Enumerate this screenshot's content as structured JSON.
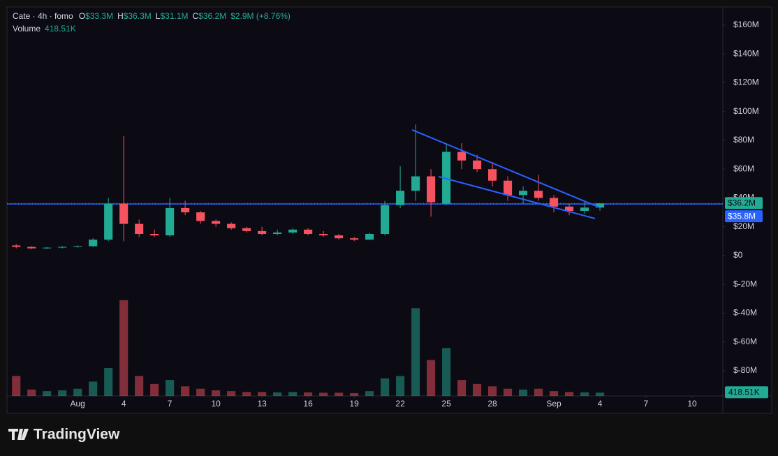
{
  "chart_data": {
    "type": "candlestick",
    "title": "Cate · 4h · fomo",
    "ohlc_names": [
      "O",
      "H",
      "L",
      "C"
    ],
    "ohlc_labels": [
      "$33.3M",
      "$36.3M",
      "$31.1M",
      "$36.2M"
    ],
    "change": "$2.9M (+8.76%)",
    "volume_name": "Volume",
    "volume_label": "418.51K",
    "up_color": "#22ab94",
    "down_color": "#f7525f",
    "x": [
      -3,
      -2,
      -1,
      0,
      1,
      2,
      3,
      4,
      5,
      6,
      7,
      8,
      9,
      10,
      11,
      12,
      13,
      14,
      15,
      16,
      17,
      18,
      19,
      20,
      21,
      22,
      23,
      24,
      25,
      26,
      27,
      28,
      29,
      30,
      31,
      32,
      33,
      34,
      35
    ],
    "open": [
      7,
      6,
      5,
      5.5,
      6,
      6.5,
      11,
      36,
      22,
      15,
      14,
      33,
      30,
      24,
      22,
      19,
      17,
      15,
      16,
      18,
      15,
      14,
      12,
      11,
      15,
      35,
      45,
      55,
      36,
      72,
      66,
      60,
      52,
      42,
      45,
      40,
      34,
      31,
      33.3
    ],
    "high": [
      8,
      6.5,
      6,
      6.5,
      7,
      12,
      40,
      83,
      25,
      18,
      40,
      38,
      31,
      25,
      23,
      20,
      20,
      18,
      19,
      19,
      17,
      15,
      13,
      16,
      38,
      62,
      91,
      60,
      78,
      78,
      70,
      65,
      55,
      48,
      56,
      42,
      36,
      37,
      36.3
    ],
    "low": [
      5,
      4.5,
      4.5,
      5,
      5.5,
      6,
      10,
      10,
      13,
      13,
      13,
      28,
      22,
      20,
      18,
      16,
      14,
      14,
      15,
      14,
      13,
      11,
      10,
      11,
      14,
      33,
      38,
      27,
      35,
      60,
      58,
      48,
      38,
      36,
      38,
      30,
      28,
      29,
      31.1
    ],
    "close": [
      6,
      5,
      5.5,
      6,
      6.5,
      11,
      36,
      22,
      15,
      14,
      33,
      30,
      24,
      22,
      19,
      17,
      15,
      16,
      18,
      15,
      14,
      12,
      11,
      15,
      35,
      45,
      55,
      37,
      72,
      66,
      60,
      52,
      42,
      45,
      40,
      34,
      31,
      33.3,
      36.2
    ],
    "volume": [
      2500,
      800,
      600,
      700,
      900,
      1800,
      3500,
      12000,
      2500,
      1500,
      2000,
      1200,
      900,
      700,
      600,
      500,
      500,
      450,
      500,
      450,
      400,
      400,
      350,
      600,
      2200,
      2500,
      11000,
      4500,
      6000,
      2000,
      1500,
      1200,
      900,
      800,
      900,
      600,
      500,
      450,
      418.51
    ],
    "volume_value_labels_last": "418.51K",
    "xlim": [
      -3.6,
      43
    ],
    "xticks": [
      {
        "value": 1,
        "label": "Aug"
      },
      4,
      7,
      10,
      13,
      16,
      19,
      22,
      25,
      28,
      {
        "value": 32,
        "label": "Sep"
      },
      {
        "value": 35,
        "label": "4"
      },
      {
        "value": 38,
        "label": "7"
      },
      {
        "value": 41,
        "label": "10"
      }
    ],
    "ylim": [
      -97.5,
      172.6
    ],
    "yticks": [
      {
        "value": 160,
        "label": "$160M"
      },
      {
        "value": 140,
        "label": "$140M"
      },
      {
        "value": 120,
        "label": "$120M"
      },
      {
        "value": 100,
        "label": "$100M"
      },
      {
        "value": 80,
        "label": "$80M"
      },
      {
        "value": 60,
        "label": "$60M"
      },
      {
        "value": 40,
        "label": "$40M"
      },
      {
        "value": 20,
        "label": "$20M"
      },
      {
        "value": 0,
        "label": "$0"
      },
      {
        "value": -20,
        "label": "$-20M"
      },
      {
        "value": -40,
        "label": "$-40M"
      },
      {
        "value": -60,
        "label": "$-60M"
      },
      {
        "value": -80,
        "label": "$-80M"
      }
    ],
    "volume_ylim": [
      0,
      14000
    ],
    "last_price": {
      "value": 36.2,
      "label": "$36.2M"
    },
    "hline": {
      "value": 35.8,
      "label": "$35.8M",
      "color": "#2962ff"
    },
    "trendlines": [
      {
        "x": [
          22.77,
          34.95
        ],
        "y": [
          87.3,
          33.5
        ],
        "color": "#2962ff"
      },
      {
        "x": [
          24.5,
          34.68
        ],
        "y": [
          54.8,
          25.7
        ],
        "color": "#2962ff"
      }
    ],
    "grid": false,
    "brand": "TradingView"
  }
}
